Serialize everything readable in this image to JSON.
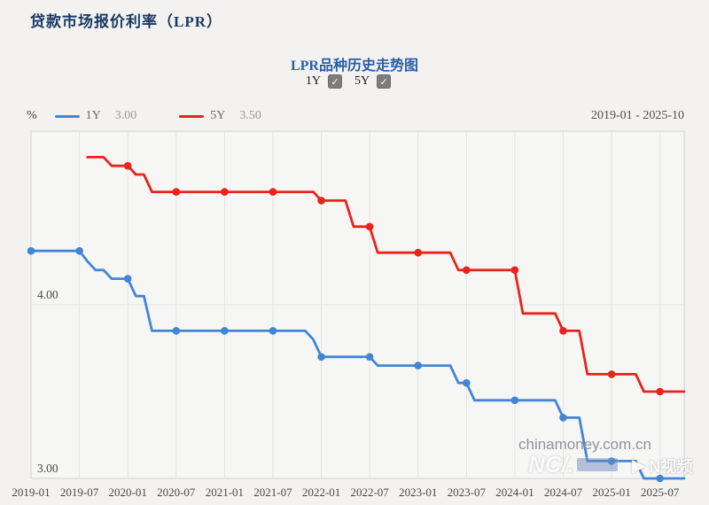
{
  "page": {
    "title": "贷款市场报价利率（LPR）"
  },
  "chart": {
    "title": "LPR品种历史走势图",
    "toggles": [
      {
        "label": "1Y",
        "checked": true
      },
      {
        "label": "5Y",
        "checked": true
      }
    ],
    "unit_label": "%",
    "legend": [
      {
        "label": "1Y",
        "value": "3.00",
        "color": "#4285d5"
      },
      {
        "label": "5Y",
        "value": "3.50",
        "color": "#e8231a"
      }
    ],
    "date_range": "2019-01 - 2025-10",
    "watermark_site": "chinamoney.com.cn",
    "watermark_left_logo": "NC/.",
    "watermark_right_logo": "N视频",
    "check_glyph": "✓"
  },
  "chart_data": {
    "type": "line",
    "title": "LPR品种历史走势图",
    "xlabel": "",
    "ylabel": "%",
    "x_monthly_start": "2019-01",
    "x_monthly_end": "2025-10",
    "x_tick_labels": [
      "2019-01",
      "2019-07",
      "2020-01",
      "2020-07",
      "2021-01",
      "2021-07",
      "2022-01",
      "2022-07",
      "2023-01",
      "2023-07",
      "2024-01",
      "2024-07",
      "2025-01",
      "2025-07"
    ],
    "ylim": [
      3.0,
      5.0
    ],
    "y_tick_values": [
      4.0,
      3.0
    ],
    "y_tick_labels": [
      "4.00",
      "3.00"
    ],
    "grid": true,
    "legend_position": "top-left",
    "marker_every_months": 6,
    "colors": {
      "plot_bg": "#f6f6f5",
      "plot_border": "#d7d7db",
      "grid_line": "#e3e3e6",
      "tick_text": "#4a4a4a"
    },
    "series": [
      {
        "name": "1Y",
        "color": "#4285d5",
        "monthly_values": [
          4.31,
          4.31,
          4.31,
          4.31,
          4.31,
          4.31,
          4.31,
          4.25,
          4.2,
          4.2,
          4.15,
          4.15,
          4.15,
          4.05,
          4.05,
          3.85,
          3.85,
          3.85,
          3.85,
          3.85,
          3.85,
          3.85,
          3.85,
          3.85,
          3.85,
          3.85,
          3.85,
          3.85,
          3.85,
          3.85,
          3.85,
          3.85,
          3.85,
          3.85,
          3.85,
          3.8,
          3.7,
          3.7,
          3.7,
          3.7,
          3.7,
          3.7,
          3.7,
          3.65,
          3.65,
          3.65,
          3.65,
          3.65,
          3.65,
          3.65,
          3.65,
          3.65,
          3.65,
          3.55,
          3.55,
          3.45,
          3.45,
          3.45,
          3.45,
          3.45,
          3.45,
          3.45,
          3.45,
          3.45,
          3.45,
          3.45,
          3.35,
          3.35,
          3.35,
          3.1,
          3.1,
          3.1,
          3.1,
          3.1,
          3.1,
          3.1,
          3.0,
          3.0,
          3.0,
          3.0,
          3.0,
          3.0
        ]
      },
      {
        "name": "5Y",
        "color": "#e8231a",
        "monthly_values": [
          null,
          null,
          null,
          null,
          null,
          null,
          null,
          4.85,
          4.85,
          4.85,
          4.8,
          4.8,
          4.8,
          4.75,
          4.75,
          4.65,
          4.65,
          4.65,
          4.65,
          4.65,
          4.65,
          4.65,
          4.65,
          4.65,
          4.65,
          4.65,
          4.65,
          4.65,
          4.65,
          4.65,
          4.65,
          4.65,
          4.65,
          4.65,
          4.65,
          4.65,
          4.6,
          4.6,
          4.6,
          4.6,
          4.45,
          4.45,
          4.45,
          4.3,
          4.3,
          4.3,
          4.3,
          4.3,
          4.3,
          4.3,
          4.3,
          4.3,
          4.3,
          4.2,
          4.2,
          4.2,
          4.2,
          4.2,
          4.2,
          4.2,
          4.2,
          3.95,
          3.95,
          3.95,
          3.95,
          3.95,
          3.85,
          3.85,
          3.85,
          3.6,
          3.6,
          3.6,
          3.6,
          3.6,
          3.6,
          3.6,
          3.5,
          3.5,
          3.5,
          3.5,
          3.5,
          3.5
        ]
      }
    ]
  }
}
